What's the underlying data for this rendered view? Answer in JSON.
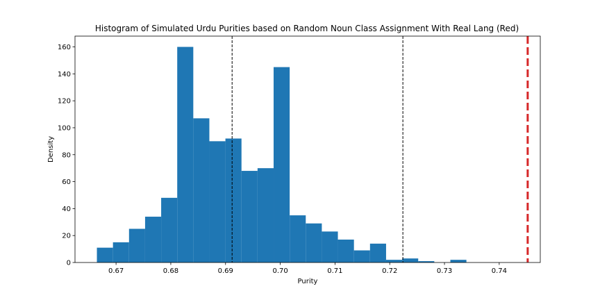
{
  "chart_data": {
    "type": "bar",
    "title": "Histogram of Simulated Urdu Purities based on Random Noun Class Assignment With Real Lang (Red)",
    "xlabel": "Purity",
    "ylabel": "Density",
    "xlim": [
      0.6625,
      0.7475
    ],
    "ylim": [
      0,
      168
    ],
    "xticks": [
      0.67,
      0.68,
      0.69,
      0.7,
      0.71,
      0.72,
      0.73,
      0.74
    ],
    "xtick_labels": [
      "0.67",
      "0.68",
      "0.69",
      "0.70",
      "0.71",
      "0.72",
      "0.73",
      "0.74"
    ],
    "yticks": [
      0,
      20,
      40,
      60,
      80,
      100,
      120,
      140,
      160
    ],
    "ytick_labels": [
      "0",
      "20",
      "40",
      "60",
      "80",
      "100",
      "120",
      "140",
      "160"
    ],
    "bin_start": 0.6665,
    "bin_width": 0.002935,
    "values": [
      11,
      15,
      25,
      34,
      48,
      160,
      107,
      90,
      92,
      68,
      70,
      145,
      35,
      29,
      23,
      17,
      9,
      14,
      2,
      3,
      1,
      0,
      2
    ],
    "bar_color": "#1f77b4",
    "reference_lines": [
      {
        "x": 0.6912,
        "color": "#000000",
        "style": "dashed"
      },
      {
        "x": 0.7224,
        "color": "#000000",
        "style": "dashed"
      },
      {
        "x": 0.7452,
        "color": "#d62728",
        "style": "dashed"
      }
    ],
    "grid": false
  }
}
